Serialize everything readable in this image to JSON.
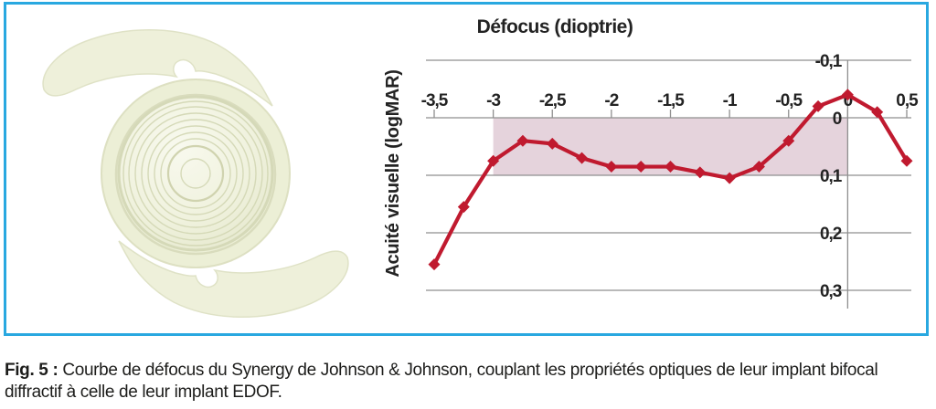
{
  "colors": {
    "border_blue": "#29a8e0",
    "line_red": "#c01a2f",
    "region_pink": "#e5d3dc",
    "grid_gray": "#8f8f8f",
    "text_dark": "#232323",
    "lens_body": "#eef0da",
    "lens_rim": "#d5d9b8"
  },
  "lens_image": {
    "alt": "Implant intraoculaire diffractif Synergy (optique avec anneaux concentriques et deux haptiques en C)"
  },
  "chart_data": {
    "type": "line",
    "xlabel": "Défocus (dioptrie)",
    "ylabel": "Acuité visuelle (logMAR)",
    "x": [
      -3.5,
      -3.25,
      -3,
      -2.75,
      -2.5,
      -2.25,
      -2,
      -1.75,
      -1.5,
      -1.25,
      -1,
      -0.75,
      -0.5,
      -0.25,
      0,
      0.25,
      0.5
    ],
    "y": [
      0.255,
      0.155,
      0.075,
      0.04,
      0.045,
      0.07,
      0.085,
      0.085,
      0.085,
      0.095,
      0.105,
      0.085,
      0.04,
      -0.02,
      -0.04,
      -0.01,
      0.075
    ],
    "x_ticks": [
      -3.5,
      -3,
      -2.5,
      -2,
      -1.5,
      -1,
      -0.5,
      0,
      0.5
    ],
    "x_tick_labels": [
      "-3,5",
      "-3",
      "-2,5",
      "-2",
      "-1,5",
      "-1",
      "-0,5",
      "0",
      "0,5"
    ],
    "y_ticks": [
      -0.1,
      0,
      0.1,
      0.2,
      0.3
    ],
    "y_tick_labels": [
      "-0,1",
      "0",
      "0,1",
      "0,2",
      "0,3"
    ],
    "xlim": [
      -3.5,
      0.5
    ],
    "ylim": [
      -0.1,
      0.3
    ],
    "y_axis_inverted": true,
    "grid": true,
    "legend": "none",
    "marker": "diamond",
    "highlight_region": {
      "x_start": -3,
      "x_end": 0,
      "y_start": 0,
      "y_end": 0.1
    }
  },
  "figure": {
    "caption_label": "Fig. 5 :",
    "caption_text": "Courbe de défocus du Synergy de Johnson & Johnson, couplant les propriétés optiques de leur implant bifocal diffractif à celle de leur implant EDOF."
  }
}
